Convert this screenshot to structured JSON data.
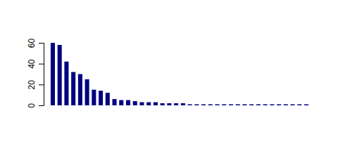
{
  "chart_data": {
    "type": "bar",
    "categories": [
      null,
      null,
      null,
      null,
      null,
      null,
      null,
      null,
      null,
      null,
      null,
      null,
      null,
      null,
      null,
      null,
      null,
      null,
      null,
      null,
      null,
      null,
      null,
      null,
      null,
      null,
      null,
      null,
      null,
      null,
      null,
      null,
      null,
      null,
      null,
      null,
      null,
      null
    ],
    "values": [
      60,
      58,
      42,
      32,
      30,
      25,
      15,
      14,
      12,
      6,
      5,
      5,
      4,
      3,
      3,
      3,
      2,
      2,
      2,
      2,
      1,
      1,
      1,
      1,
      1,
      1,
      1,
      1,
      1,
      1,
      1,
      1,
      1,
      1,
      1,
      1,
      1,
      1
    ],
    "color": "#000080",
    "ylim": [
      0,
      60
    ],
    "yticks": [
      0,
      20,
      40,
      60
    ],
    "grid": false,
    "tick_labels": "y"
  }
}
